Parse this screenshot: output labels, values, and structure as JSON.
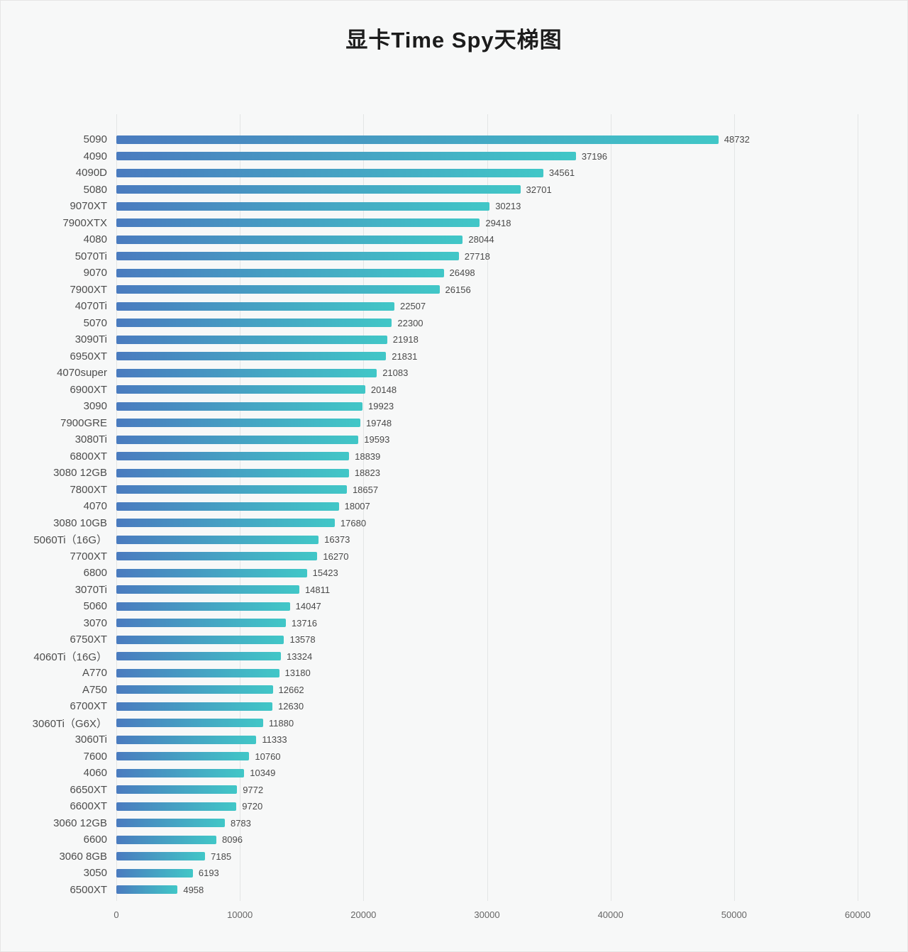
{
  "chart_data": {
    "type": "bar",
    "orientation": "horizontal",
    "title": "显卡Time Spy天梯图",
    "xlabel": "",
    "ylabel": "",
    "xlim": [
      0,
      60000
    ],
    "x_ticks": [
      0,
      10000,
      20000,
      30000,
      40000,
      50000,
      60000
    ],
    "grid": true,
    "legend": "none",
    "bar_gradient": [
      "#4a7bbf",
      "#41c7c7"
    ],
    "categories": [
      "5090",
      "4090",
      "4090D",
      "5080",
      "9070XT",
      "7900XTX",
      "4080",
      "5070Ti",
      "9070",
      "7900XT",
      "4070Ti",
      "5070",
      "3090Ti",
      "6950XT",
      "4070super",
      "6900XT",
      "3090",
      "7900GRE",
      "3080Ti",
      "6800XT",
      "3080 12GB",
      "7800XT",
      "4070",
      "3080 10GB",
      "5060Ti（16G）",
      "7700XT",
      "6800",
      "3070Ti",
      "5060",
      "3070",
      "6750XT",
      "4060Ti（16G）",
      "A770",
      "A750",
      "6700XT",
      "3060Ti（G6X）",
      "3060Ti",
      "7600",
      "4060",
      "6650XT",
      "6600XT",
      "3060 12GB",
      "6600",
      "3060 8GB",
      "3050",
      "6500XT"
    ],
    "values": [
      48732,
      37196,
      34561,
      32701,
      30213,
      29418,
      28044,
      27718,
      26498,
      26156,
      22507,
      22300,
      21918,
      21831,
      21083,
      20148,
      19923,
      19748,
      19593,
      18839,
      18823,
      18657,
      18007,
      17680,
      16373,
      16270,
      15423,
      14811,
      14047,
      13716,
      13578,
      13324,
      13180,
      12662,
      12630,
      11880,
      11333,
      10760,
      10349,
      9772,
      9720,
      8783,
      8096,
      7185,
      6193,
      4958
    ]
  }
}
